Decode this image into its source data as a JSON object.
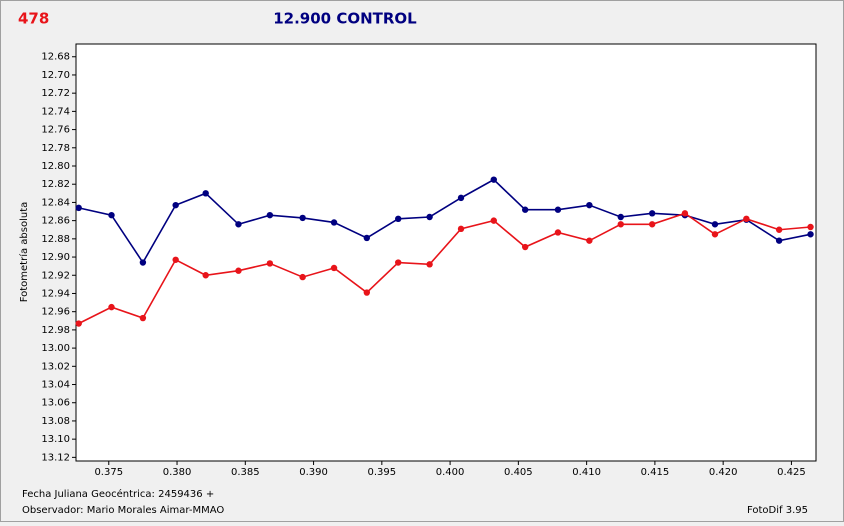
{
  "chart_data": {
    "type": "line",
    "corner_label": "478",
    "title": "12.900 CONTROL",
    "ylabel": "Fotometría absoluta",
    "footer_left_1": "Fecha Juliana Geocéntrica: 2459436 +",
    "footer_left_2": "Observador: Mario Morales Aimar-MMAO",
    "footer_right": "FotoDif 3.95",
    "x": [
      0.3728,
      0.3752,
      0.3775,
      0.3799,
      0.3821,
      0.3845,
      0.3868,
      0.3892,
      0.3915,
      0.3939,
      0.3962,
      0.3985,
      0.4008,
      0.4032,
      0.4055,
      0.4079,
      0.4102,
      0.4125,
      0.4148,
      0.4172,
      0.4194,
      0.4217,
      0.4241,
      0.4264
    ],
    "series": [
      {
        "color": "#000080",
        "values": [
          12.846,
          12.854,
          12.906,
          12.843,
          12.83,
          12.864,
          12.854,
          12.857,
          12.862,
          12.879,
          12.858,
          12.856,
          12.835,
          12.815,
          12.848,
          12.848,
          12.843,
          12.856,
          12.852,
          12.854,
          12.864,
          12.859,
          12.882,
          12.875
        ]
      },
      {
        "color": "#e8141a",
        "values": [
          12.973,
          12.955,
          12.967,
          12.903,
          12.92,
          12.915,
          12.907,
          12.922,
          12.912,
          12.939,
          12.906,
          12.908,
          12.869,
          12.86,
          12.889,
          12.873,
          12.882,
          12.864,
          12.864,
          12.852,
          12.875,
          12.858,
          12.87,
          12.867
        ]
      }
    ],
    "xlim": [
      0.3726,
      0.4268
    ],
    "ylim": [
      12.666,
      13.124
    ],
    "y_inverted": true,
    "grid": false,
    "xticks": [
      0.375,
      {
        "value": 0.38,
        "label": "0.380"
      },
      0.385,
      {
        "value": 0.39,
        "label": "0.390"
      },
      0.395,
      {
        "value": 0.4,
        "label": "0.400"
      },
      0.405,
      {
        "value": 0.41,
        "label": "0.410"
      },
      0.415,
      {
        "value": 0.42,
        "label": "0.420"
      },
      0.425
    ],
    "yticks": [
      12.68,
      {
        "value": 12.7,
        "label": "12.70"
      },
      12.72,
      12.74,
      12.76,
      12.78,
      {
        "value": 12.8,
        "label": "12.80"
      },
      12.82,
      12.84,
      12.86,
      12.88,
      {
        "value": 12.9,
        "label": "12.90"
      },
      12.92,
      12.94,
      12.96,
      12.98,
      {
        "value": 13.0,
        "label": "13.00"
      },
      13.02,
      13.04,
      13.06,
      13.08,
      {
        "value": 13.1,
        "label": "13.10"
      },
      13.12
    ]
  }
}
